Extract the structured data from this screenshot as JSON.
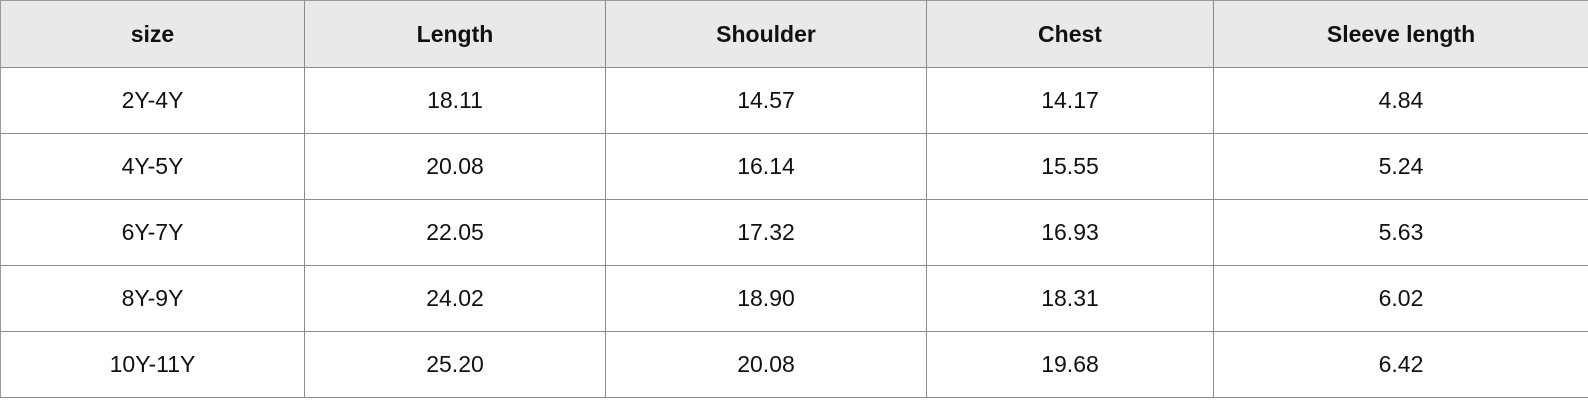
{
  "table": {
    "headers": [
      "size",
      "Length",
      "Shoulder",
      "Chest",
      "Sleeve length"
    ],
    "rows": [
      [
        "2Y-4Y",
        "18.11",
        "14.57",
        "14.17",
        "4.84"
      ],
      [
        "4Y-5Y",
        "20.08",
        "16.14",
        "15.55",
        "5.24"
      ],
      [
        "6Y-7Y",
        "22.05",
        "17.32",
        "16.93",
        "5.63"
      ],
      [
        "8Y-9Y",
        "24.02",
        "18.90",
        "18.31",
        "6.02"
      ],
      [
        "10Y-11Y",
        "25.20",
        "20.08",
        "19.68",
        "6.42"
      ]
    ]
  },
  "colors": {
    "header_background": "#e9e9e9",
    "grid_line": "#8c8c8c",
    "text": "#111111"
  }
}
